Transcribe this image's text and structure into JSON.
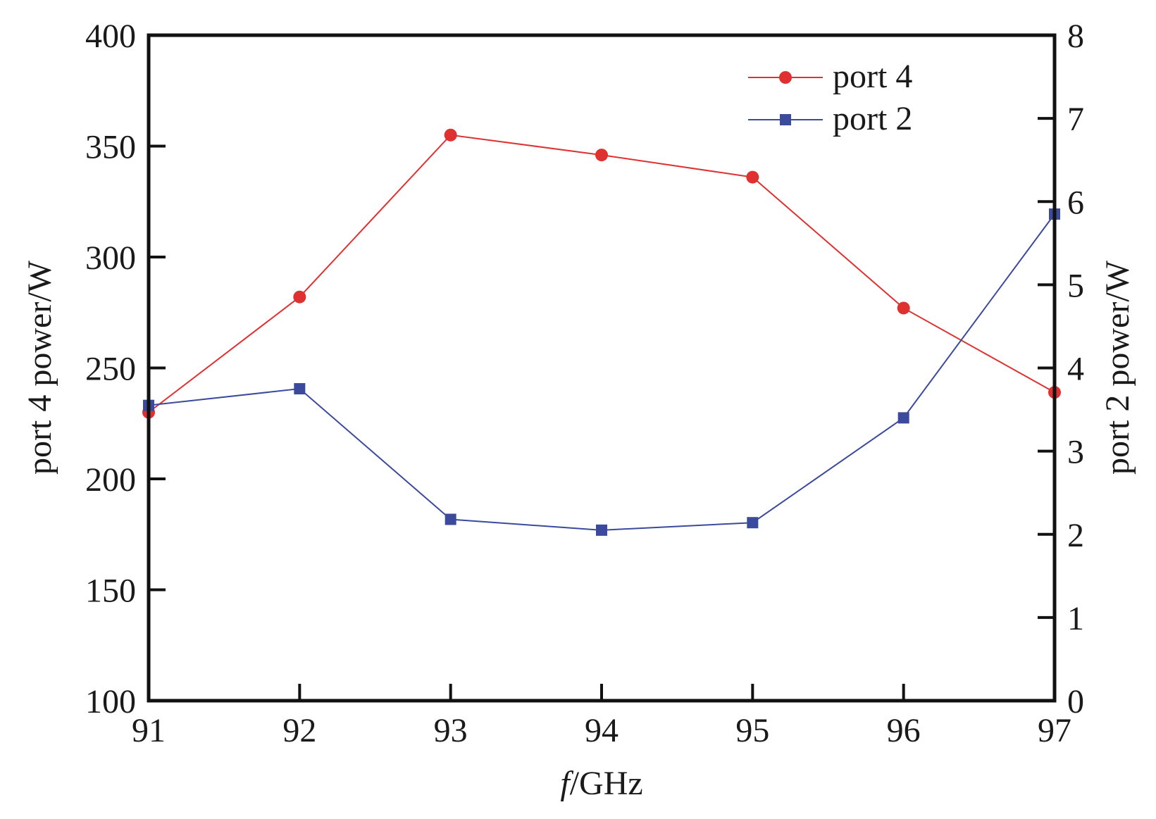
{
  "chart_data": {
    "type": "line",
    "xlabel_italic": "f",
    "xlabel_rest": "/GHz",
    "ylabel_left": "port 4 power/W",
    "ylabel_right": "port 2 power/W",
    "xlim": [
      91,
      97
    ],
    "ylim_left": [
      100,
      400
    ],
    "ylim_right": [
      0,
      8
    ],
    "x_ticks": [
      91,
      92,
      93,
      94,
      95,
      96,
      97
    ],
    "y_ticks_left": [
      100,
      150,
      200,
      250,
      300,
      350,
      400
    ],
    "y_ticks_right": [
      0,
      1,
      2,
      3,
      4,
      5,
      6,
      7,
      8
    ],
    "grid": false,
    "legend_position": "top-right",
    "x": [
      91,
      92,
      93,
      94,
      95,
      96,
      97
    ],
    "series": [
      {
        "name": "port 4",
        "axis": "left",
        "marker": "circle",
        "color": "#e03131",
        "values": [
          230,
          282,
          355,
          346,
          336,
          277,
          239
        ]
      },
      {
        "name": "port 2",
        "axis": "right",
        "marker": "square",
        "color": "#3b4a9c",
        "values": [
          3.55,
          3.75,
          2.18,
          2.05,
          2.14,
          3.4,
          5.85
        ]
      }
    ]
  }
}
